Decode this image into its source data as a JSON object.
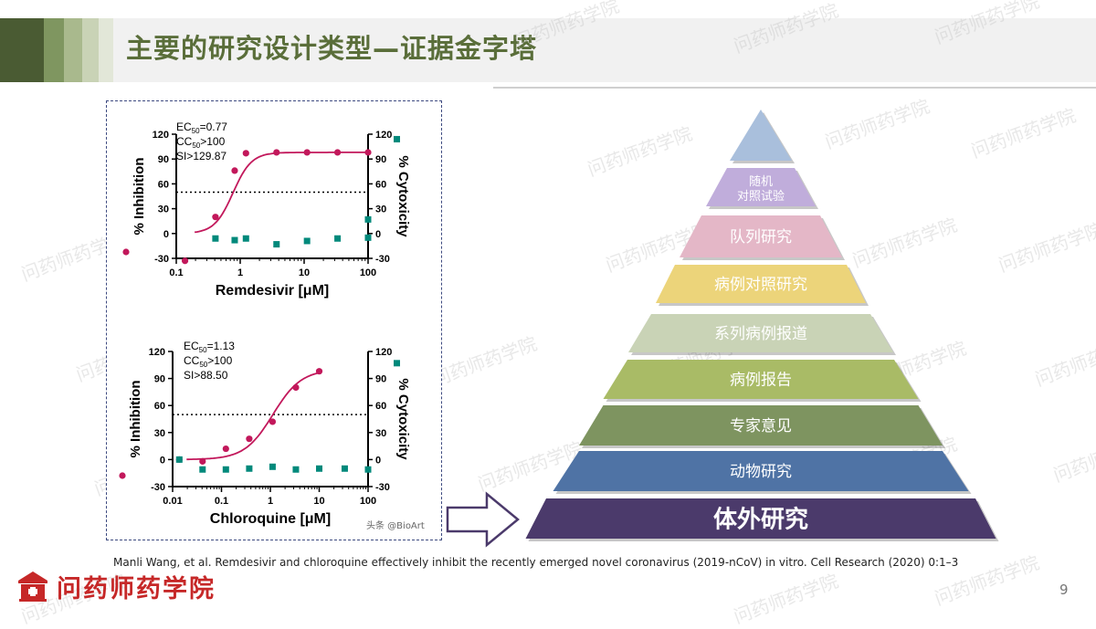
{
  "slide": {
    "title": "主要的研究设计类型—证据金字塔",
    "citation": "Manli Wang, et al. Remdesivir and chloroquine effectively inhibit the recently emerged novel coronavirus (2019-nCoV) in vitro. Cell Research (2020) 0:1–3",
    "page_number": "9",
    "logo_text": "问药师药学院",
    "watermark_text": "问药师药学院",
    "image_credit": "头条 @BioArt"
  },
  "colors": {
    "title": "#5a6e3a",
    "inhibition": "#c2185b",
    "cytotoxicity": "#00897b",
    "logo": "#c62828"
  },
  "pyramid": {
    "levels": [
      {
        "label": "",
        "color": "#a9bfdc"
      },
      {
        "label": "随机\n对照试验",
        "color": "#c0addb"
      },
      {
        "label": "队列研究",
        "color": "#e4b7c7"
      },
      {
        "label": "病例对照研究",
        "color": "#ecd47a"
      },
      {
        "label": "系列病例报道",
        "color": "#c9d3b6"
      },
      {
        "label": "病例报告",
        "color": "#a9bb66"
      },
      {
        "label": "专家意见",
        "color": "#7e9460"
      },
      {
        "label": "动物研究",
        "color": "#4f73a5"
      },
      {
        "label": "体外研究",
        "color": "#4b3a6b"
      }
    ]
  },
  "chart_data": [
    {
      "type": "scatter",
      "xlabel": "Remdesivir [μM]",
      "ylabel": "% Inhibition",
      "y2label": "% Cytoxicity",
      "annotations": {
        "ec50": "0.77",
        "cc50": ">100",
        "si": "SI>129.87"
      },
      "x_scale": "log",
      "xlim": [
        0.1,
        100
      ],
      "ylim": [
        -30,
        120
      ],
      "x_ticks": [
        0.1,
        1,
        10,
        100
      ],
      "x_tick_labels": [
        "0.1",
        "1",
        "10",
        "100"
      ],
      "y_ticks": [
        -30,
        0,
        30,
        60,
        90,
        120
      ],
      "y_tick_labels": [
        "-30",
        "0",
        "30",
        "60",
        "90",
        "120"
      ],
      "y2_tick_labels": [
        "-30",
        "0",
        "30",
        "60",
        "90",
        "120"
      ],
      "reference_line": 50,
      "series": [
        {
          "name": "% Inhibition",
          "x": [
            0.137,
            0.41,
            0.82,
            1.23,
            3.7,
            11.1,
            33.3,
            100
          ],
          "y": [
            -33,
            20,
            76,
            97,
            98,
            98,
            98,
            98
          ]
        },
        {
          "name": "% Cytoxicity",
          "x": [
            0.41,
            0.82,
            1.23,
            3.7,
            11.1,
            33.3,
            100
          ],
          "y": [
            -6,
            -8,
            -6,
            -13,
            -9,
            -6,
            -5
          ]
        },
        {
          "x": [
            100
          ],
          "y": [
            17
          ]
        }
      ],
      "extra_point": {
        "y2": 114
      },
      "fit_curve": {
        "bottom": 0,
        "top": 98,
        "ec50": 0.77,
        "hill": 3
      }
    },
    {
      "type": "scatter",
      "xlabel": "Chloroquine [μM]",
      "ylabel": "% Inhibition",
      "y2label": "% Cytoxicity",
      "annotations": {
        "ec50": "1.13",
        "cc50": ">100",
        "si": "SI>88.50"
      },
      "x_scale": "log",
      "xlim": [
        0.01,
        100
      ],
      "ylim": [
        -30,
        120
      ],
      "x_ticks": [
        0.01,
        0.1,
        1,
        10,
        100
      ],
      "x_tick_labels": [
        "0.01",
        "0.1",
        "1",
        "10",
        "100"
      ],
      "y_ticks": [
        -30,
        0,
        30,
        60,
        90,
        120
      ],
      "y_tick_labels": [
        "-30",
        "0",
        "30",
        "60",
        "90",
        "120"
      ],
      "y2_tick_labels": [
        "-30",
        "0",
        "30",
        "60",
        "90",
        "120"
      ],
      "reference_line": 50,
      "series": [
        {
          "name": "% Inhibition",
          "x": [
            0.0137,
            0.041,
            0.123,
            0.37,
            1.11,
            3.33,
            10
          ],
          "y": [
            0,
            -2,
            12,
            23,
            42,
            80,
            98
          ]
        },
        {
          "name": "% Cytoxicity",
          "x": [
            0.0137,
            0.041,
            0.123,
            0.37,
            1.11,
            3.33,
            10,
            33.3,
            100
          ],
          "y": [
            0,
            -11,
            -11,
            -10,
            -8,
            -11,
            -10,
            -10,
            -11
          ]
        }
      ],
      "extra_point": {
        "y2": 107
      },
      "fit_curve": {
        "bottom": 0,
        "top": 100,
        "ec50": 1.13,
        "hill": 1.5
      }
    }
  ]
}
